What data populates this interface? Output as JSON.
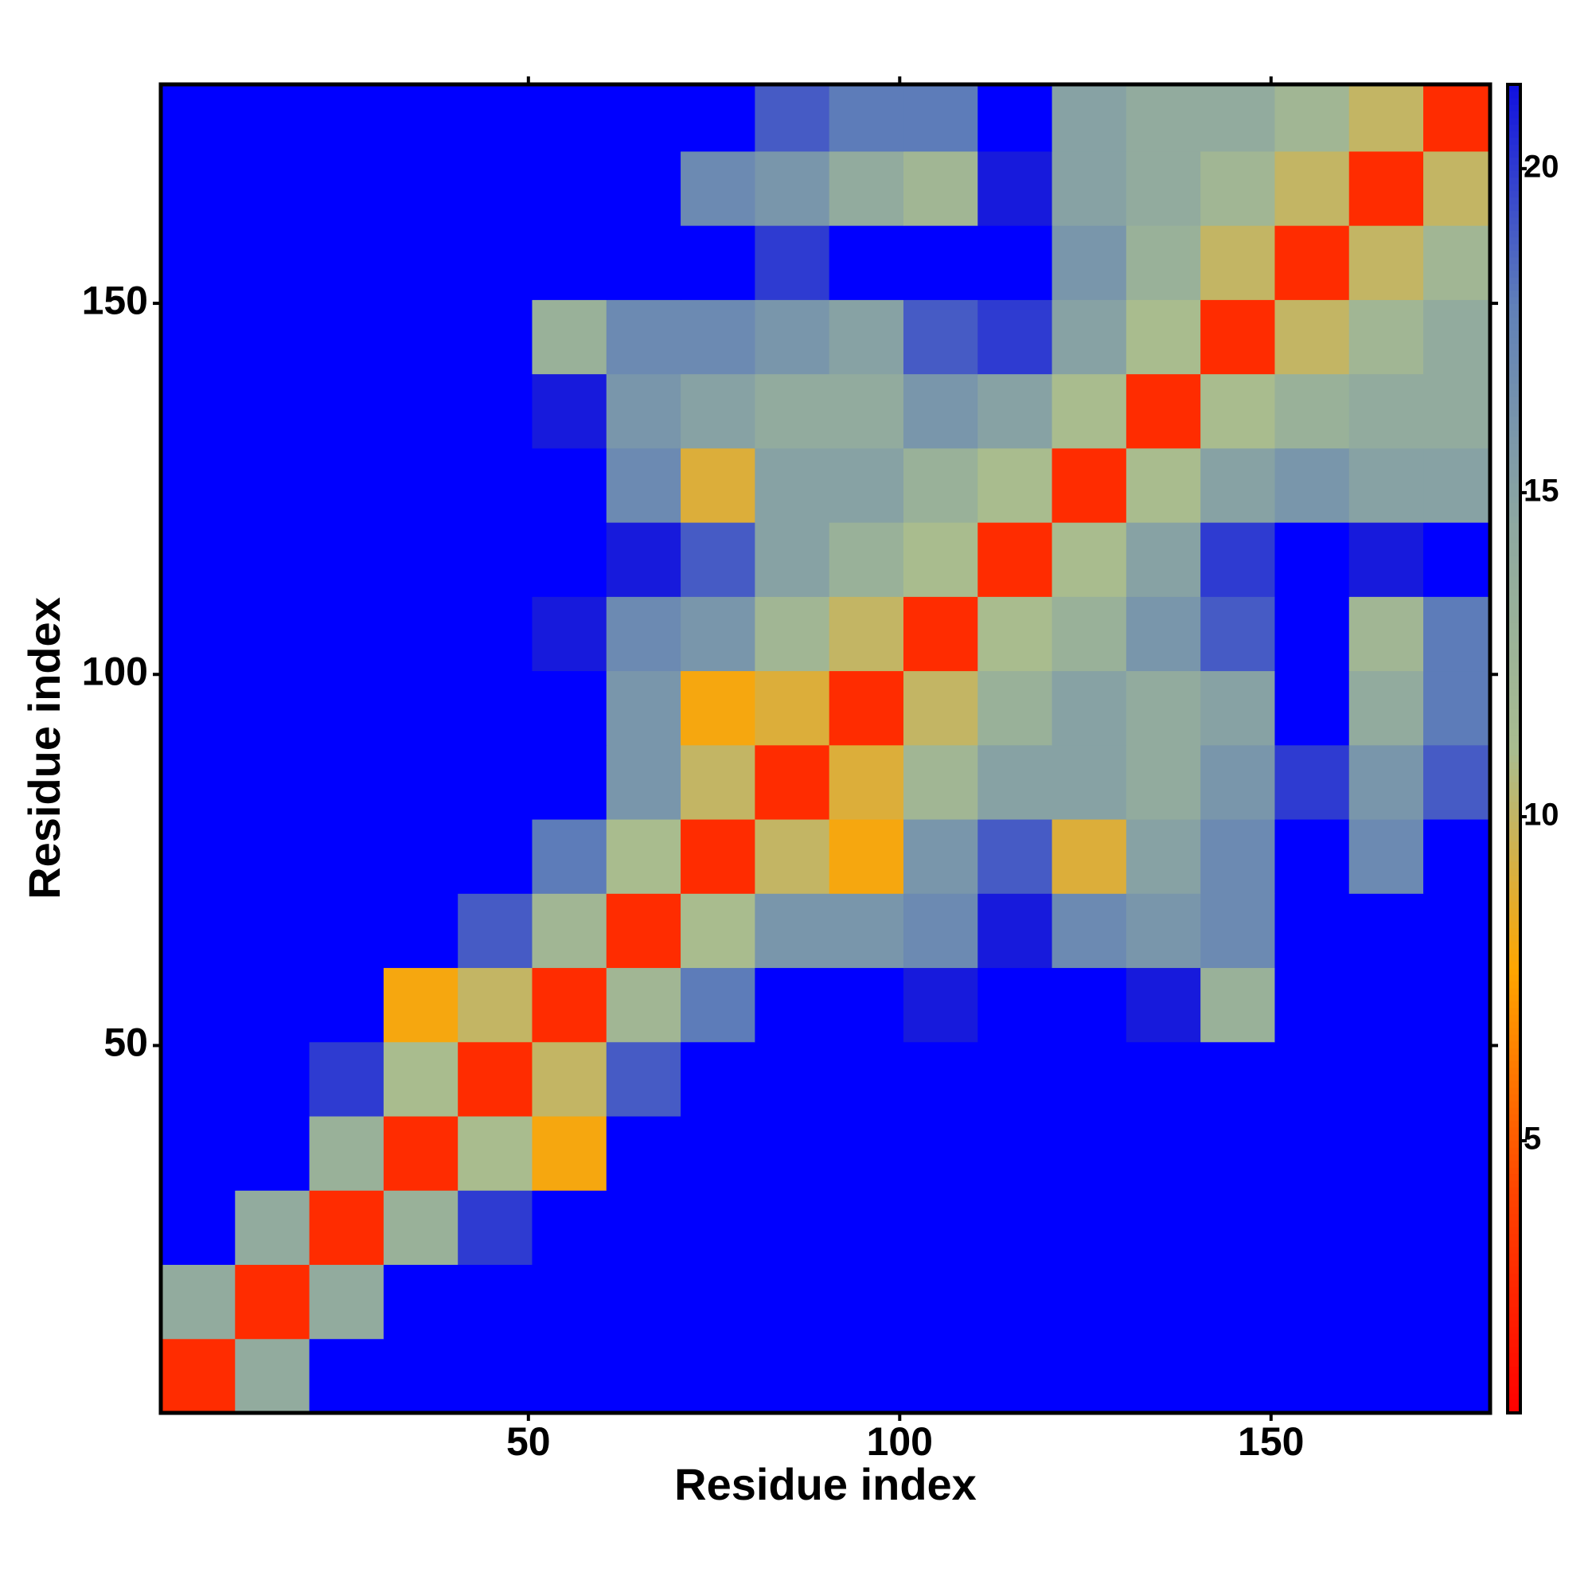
{
  "chart_data": {
    "type": "heatmap",
    "xlabel": "Residue index",
    "ylabel": "Residue index",
    "x_bins": [
      0.5,
      10.5,
      20.5,
      30.5,
      40.5,
      50.5,
      60.5,
      70.5,
      80.5,
      90.5,
      100.5,
      110.5,
      120.5,
      130.5,
      140.5,
      150.5,
      160.5,
      170.5,
      179.5
    ],
    "y_bins": [
      0.5,
      10.5,
      20.5,
      30.5,
      40.5,
      50.5,
      60.5,
      70.5,
      80.5,
      90.5,
      100.5,
      110.5,
      120.5,
      130.5,
      140.5,
      150.5,
      160.5,
      170.5,
      179.5
    ],
    "xlim": [
      0.5,
      179.5
    ],
    "ylim": [
      0.5,
      179.5
    ],
    "xticks": [
      50,
      100,
      150
    ],
    "yticks": [
      50,
      100,
      150
    ],
    "clim": [
      0.8,
      21.3
    ],
    "cticks": [
      5,
      10,
      15,
      20
    ],
    "colormap": [
      "#ff0000",
      "#ff4500",
      "#ffa500",
      "#a8bc90",
      "#8ea8a0",
      "#6080b8",
      "#1010e0"
    ],
    "over_color": "#0000ff",
    "values": [
      [
        3,
        14,
        25,
        25,
        25,
        25,
        25,
        25,
        25,
        25,
        25,
        25,
        25,
        25,
        25,
        25,
        25,
        25
      ],
      [
        14,
        3,
        14,
        22,
        25,
        25,
        25,
        25,
        25,
        25,
        25,
        25,
        25,
        25,
        25,
        25,
        25,
        25
      ],
      [
        25,
        14,
        3,
        13,
        20,
        25,
        25,
        25,
        25,
        25,
        25,
        25,
        25,
        25,
        25,
        25,
        25,
        25
      ],
      [
        25,
        22,
        13,
        3,
        11,
        8,
        22,
        25,
        25,
        25,
        25,
        25,
        25,
        25,
        25,
        25,
        25,
        25
      ],
      [
        25,
        25,
        20,
        11,
        3,
        10,
        19,
        25,
        25,
        25,
        25,
        25,
        25,
        25,
        25,
        25,
        25,
        25
      ],
      [
        25,
        25,
        25,
        8,
        10,
        3,
        12,
        18,
        25,
        22,
        21,
        25,
        23,
        21,
        13,
        25,
        25,
        25
      ],
      [
        25,
        25,
        25,
        22,
        19,
        12,
        3,
        11,
        16,
        16,
        17,
        21,
        17,
        16,
        17,
        23,
        23,
        25
      ],
      [
        25,
        25,
        25,
        25,
        25,
        18,
        11,
        3,
        10,
        8,
        16,
        19,
        9,
        15,
        17,
        23,
        17,
        25
      ],
      [
        25,
        25,
        25,
        25,
        25,
        25,
        16,
        10,
        3,
        9,
        12,
        15,
        15,
        14,
        16,
        20,
        16,
        19
      ],
      [
        25,
        25,
        25,
        25,
        25,
        22,
        16,
        8,
        9,
        3,
        10,
        13,
        15,
        14,
        15,
        22,
        14,
        18
      ],
      [
        25,
        25,
        25,
        25,
        25,
        21,
        17,
        16,
        12,
        10,
        3,
        11,
        13,
        16,
        19,
        23,
        12,
        18
      ],
      [
        25,
        25,
        25,
        25,
        25,
        25,
        21,
        19,
        15,
        13,
        11,
        3,
        11,
        15,
        20,
        25,
        21,
        25
      ],
      [
        25,
        25,
        25,
        25,
        25,
        23,
        17,
        9,
        15,
        15,
        13,
        11,
        3,
        11,
        15,
        16,
        15,
        15
      ],
      [
        25,
        25,
        25,
        25,
        25,
        21,
        16,
        15,
        14,
        14,
        16,
        15,
        11,
        3,
        11,
        13,
        14,
        14
      ],
      [
        25,
        25,
        25,
        25,
        25,
        13,
        17,
        17,
        16,
        15,
        19,
        20,
        15,
        11,
        3,
        10,
        12,
        14
      ],
      [
        25,
        25,
        25,
        25,
        25,
        25,
        23,
        23,
        20,
        22,
        23,
        25,
        16,
        13,
        10,
        3,
        10,
        12
      ],
      [
        25,
        25,
        25,
        25,
        25,
        25,
        23,
        17,
        16,
        14,
        12,
        21,
        15,
        14,
        12,
        10,
        3,
        10
      ],
      [
        25,
        25,
        25,
        25,
        25,
        25,
        25,
        25,
        19,
        18,
        18,
        25,
        15,
        14,
        14,
        12,
        10,
        3
      ]
    ]
  }
}
